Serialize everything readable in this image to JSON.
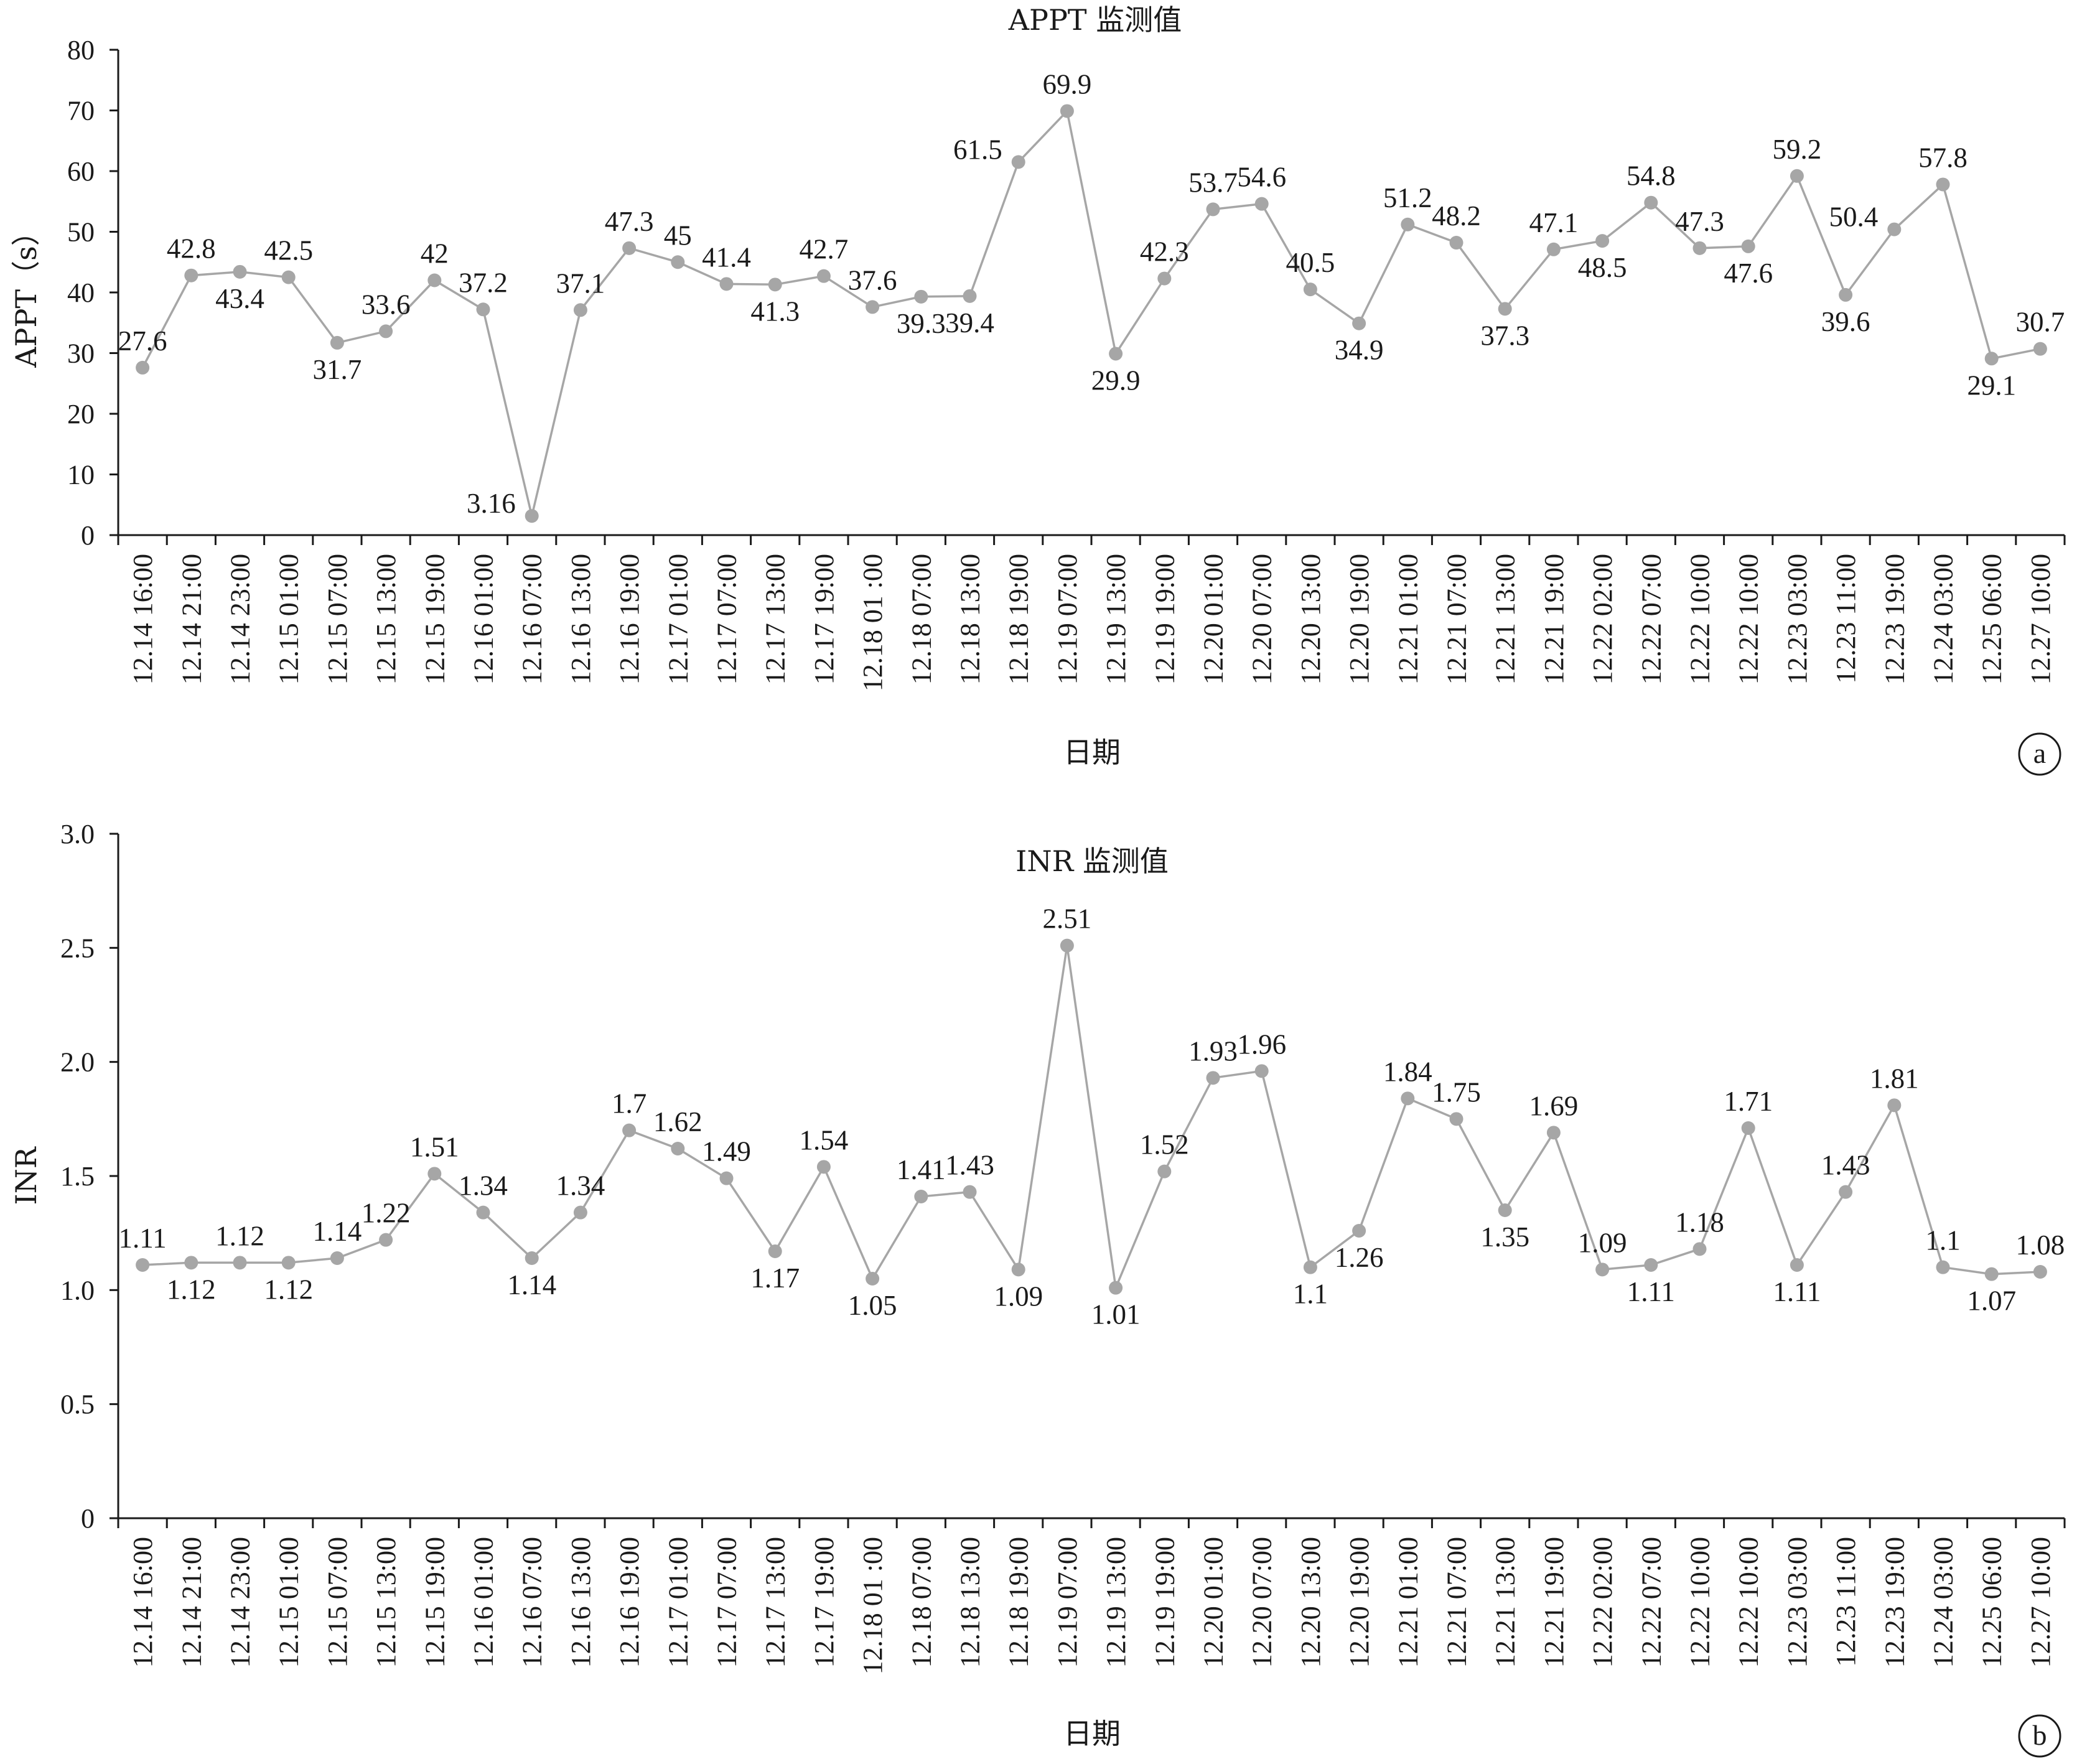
{
  "chart_data": [
    {
      "type": "line",
      "title": "APPT 监测值",
      "xlabel": "日期",
      "ylabel": "APPT（s）",
      "ylim": [
        0,
        80
      ],
      "yticks": [
        "0",
        "10",
        "20",
        "30",
        "40",
        "50",
        "60",
        "70",
        "80"
      ],
      "panel_tag": "a",
      "color": "#a6a6a6",
      "grid": false,
      "categories": [
        "12.14 16:00",
        "12.14 21:00",
        "12.14 23:00",
        "12.15 01:00",
        "12.15 07:00",
        "12.15 13:00",
        "12.15 19:00",
        "12.16 01:00",
        "12.16 07:00",
        "12.16 13:00",
        "12.16 19:00",
        "12.17 01:00",
        "12.17 07:00",
        "12.17 13:00",
        "12.17 19:00",
        "12.18 01 :00",
        "12.18 07:00",
        "12.18 13:00",
        "12.18 19:00",
        "12.19 07:00",
        "12.19 13:00",
        "12.19 19:00",
        "12.20 01:00",
        "12.20 07:00",
        "12.20 13:00",
        "12.20 19:00",
        "12.21 01:00",
        "12.21 07:00",
        "12.21 13:00",
        "12.21 19:00",
        "12.22 02:00",
        "12.22 07:00",
        "12.22 10:00",
        "12.22 10:00",
        "12.23 03:00",
        "12.23 11:00",
        "12.23 19:00",
        "12.24 03:00",
        "12.25 06:00",
        "12.27 10:00"
      ],
      "values": [
        27.6,
        42.8,
        43.4,
        42.5,
        31.7,
        33.6,
        42,
        37.2,
        3.16,
        37.1,
        47.3,
        45,
        41.4,
        41.3,
        42.7,
        37.6,
        39.3,
        39.4,
        61.5,
        69.9,
        29.9,
        42.3,
        53.7,
        54.6,
        40.5,
        34.9,
        51.2,
        48.2,
        37.3,
        47.1,
        48.5,
        54.8,
        47.3,
        47.6,
        59.2,
        39.6,
        50.4,
        57.8,
        29.1,
        30.7
      ],
      "labels": [
        "27.6",
        "42.8",
        "43.4",
        "42.5",
        "31.7",
        "33.6",
        "42",
        "37.2",
        "3.16",
        "37.1",
        "47.3",
        "45",
        "41.4",
        "41.3",
        "42.7",
        "37.6",
        "39.3",
        "39.4",
        "61.5",
        "69.9",
        "29.9",
        "42.3",
        "53.7",
        "54.6",
        "40.5",
        "34.9",
        "51.2",
        "48.2",
        "37.3",
        "47.1",
        "48.5",
        "54.8",
        "47.3",
        "47.6",
        "59.2",
        "39.6",
        "50.4",
        "57.8",
        "29.1",
        "30.7"
      ],
      "label_pos": [
        "a",
        "a",
        "b",
        "a",
        "b",
        "a",
        "a",
        "a",
        "l",
        "a",
        "a",
        "a",
        "a",
        "b",
        "a",
        "a",
        "b",
        "b",
        "l",
        "a",
        "b",
        "a",
        "a",
        "a",
        "a",
        "b",
        "a",
        "a",
        "b",
        "a",
        "b",
        "a",
        "a",
        "b",
        "a",
        "b",
        "l",
        "a",
        "b",
        "a"
      ]
    },
    {
      "type": "line",
      "title": "INR 监测值",
      "xlabel": "日期",
      "ylabel": "INR",
      "ylim": [
        0,
        3
      ],
      "yticks": [
        "0",
        "0.5",
        "1.0",
        "1.5",
        "2.0",
        "2.5",
        "3.0"
      ],
      "panel_tag": "b",
      "color": "#a6a6a6",
      "grid": false,
      "categories": [
        "12.14 16:00",
        "12.14 21:00",
        "12.14 23:00",
        "12.15 01:00",
        "12.15 07:00",
        "12.15 13:00",
        "12.15 19:00",
        "12.16 01:00",
        "12.16 07:00",
        "12.16 13:00",
        "12.16 19:00",
        "12.17 01:00",
        "12.17 07:00",
        "12.17 13:00",
        "12.17 19:00",
        "12.18 01 :00",
        "12.18 07:00",
        "12.18 13:00",
        "12.18 19:00",
        "12.19 07:00",
        "12.19 13:00",
        "12.19 19:00",
        "12.20 01:00",
        "12.20 07:00",
        "12.20 13:00",
        "12.20 19:00",
        "12.21 01:00",
        "12.21 07:00",
        "12.21 13:00",
        "12.21 19:00",
        "12.22 02:00",
        "12.22 07:00",
        "12.22 10:00",
        "12.22 10:00",
        "12.23 03:00",
        "12.23 11:00",
        "12.23 19:00",
        "12.24 03:00",
        "12.25 06:00",
        "12.27 10:00"
      ],
      "values": [
        1.11,
        1.12,
        1.12,
        1.12,
        1.14,
        1.22,
        1.51,
        1.34,
        1.14,
        1.34,
        1.7,
        1.62,
        1.49,
        1.17,
        1.54,
        1.05,
        1.41,
        1.43,
        1.09,
        2.51,
        1.01,
        1.52,
        1.93,
        1.96,
        1.1,
        1.26,
        1.84,
        1.75,
        1.35,
        1.69,
        1.09,
        1.11,
        1.18,
        1.71,
        1.11,
        1.43,
        1.81,
        1.1,
        1.07,
        1.08
      ],
      "labels": [
        "1.11",
        "1.12",
        "1.12",
        "1.12",
        "1.14",
        "1.22",
        "1.51",
        "1.34",
        "1.14",
        "1.34",
        "1.7",
        "1.62",
        "1.49",
        "1.17",
        "1.54",
        "1.05",
        "1.41",
        "1.43",
        "1.09",
        "2.51",
        "1.01",
        "1.52",
        "1.93",
        "1.96",
        "1.1",
        "1.26",
        "1.84",
        "1.75",
        "1.35",
        "1.69",
        "1.09",
        "1.11",
        "1.18",
        "1.71",
        "1.11",
        "1.43",
        "1.81",
        "1.1",
        "1.07",
        "1.08"
      ],
      "label_pos": [
        "a",
        "b",
        "a",
        "b",
        "a",
        "a",
        "a",
        "a",
        "b",
        "a",
        "a",
        "a",
        "a",
        "b",
        "a",
        "b",
        "a",
        "a",
        "b",
        "a",
        "b",
        "a",
        "a",
        "a",
        "b",
        "b",
        "a",
        "a",
        "b",
        "a",
        "a",
        "b",
        "a",
        "a",
        "b",
        "a",
        "a",
        "a",
        "b",
        "a"
      ]
    }
  ]
}
